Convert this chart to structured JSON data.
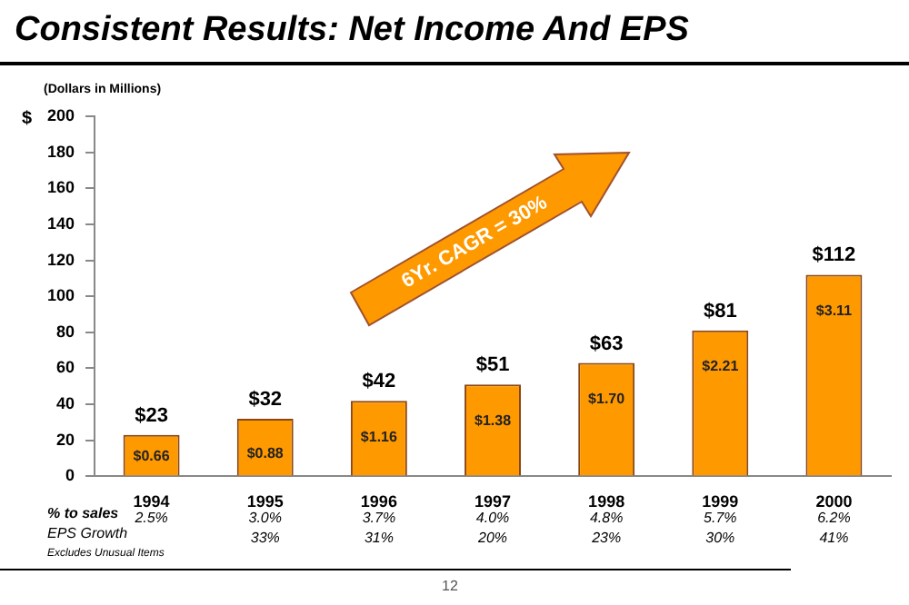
{
  "chart_data": {
    "type": "bar",
    "title": "Consistent Results:  Net Income And EPS",
    "ylabel": "$",
    "categories": [
      "1994",
      "1995",
      "1996",
      "1997",
      "1998",
      "1999",
      "2000"
    ],
    "values": [
      23,
      32,
      42,
      51,
      63,
      81,
      112
    ],
    "color": "#ff9900",
    "value_labels": [
      "$23",
      "$32",
      "$42",
      "$51",
      "$63",
      "$81",
      "$112"
    ],
    "ylim": [
      0,
      200
    ],
    "yticks": [
      0,
      20,
      40,
      60,
      80,
      100,
      120,
      140,
      160,
      180,
      200
    ],
    "grid": false,
    "legend": false,
    "annotations": [
      "(Dollars in Millions)",
      "6Yr. CAGR = 30%",
      "% to sales",
      "EPS Growth",
      "Excludes Unusual Items",
      "12",
      "$0.66",
      "$0.88",
      "$1.16",
      "$1.38",
      "$1.70",
      "$2.21",
      "$3.11",
      "2.5%",
      "3.0%",
      "3.7%",
      "4.0%",
      "4.8%",
      "5.7%",
      "6.2%",
      "33%",
      "31%",
      "20%",
      "23%",
      "30%",
      "41%"
    ]
  }
}
